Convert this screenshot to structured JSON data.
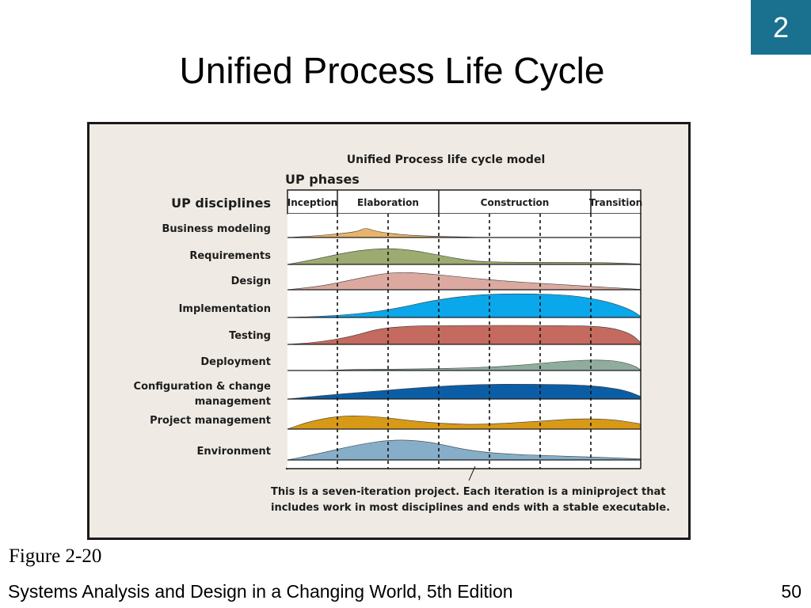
{
  "slide": {
    "chapter_number": "2",
    "title": "Unified Process Life Cycle",
    "figure_caption": "Figure 2-20",
    "footer_text": "Systems Analysis and Design in a Changing World, 5th Edition",
    "page_number": "50"
  },
  "diagram": {
    "heading": "Unified Process life cycle model",
    "phases_label": "UP phases",
    "disciplines_label": "UP disciplines",
    "phases": [
      "Inception",
      "Elaboration",
      "Construction",
      "Transition"
    ],
    "disciplines": [
      {
        "label": [
          "Business modeling"
        ],
        "color": "#e8b36a"
      },
      {
        "label": [
          "Requirements"
        ],
        "color": "#9cab6f"
      },
      {
        "label": [
          "Design"
        ],
        "color": "#dba9a0"
      },
      {
        "label": [
          "Implementation"
        ],
        "color": "#0aa7ea"
      },
      {
        "label": [
          "Testing"
        ],
        "color": "#c46a5f"
      },
      {
        "label": [
          "Deployment"
        ],
        "color": "#8fac9c"
      },
      {
        "label": [
          "Configuration & change",
          "management"
        ],
        "color": "#0b5ea5"
      },
      {
        "label": [
          "Project management"
        ],
        "color": "#d89a16"
      },
      {
        "label": [
          "Environment"
        ],
        "color": "#86aec9"
      }
    ],
    "note": [
      "This is a seven-iteration project. Each iteration is a miniproject that",
      "includes work in most disciplines and ends with a stable executable."
    ]
  }
}
